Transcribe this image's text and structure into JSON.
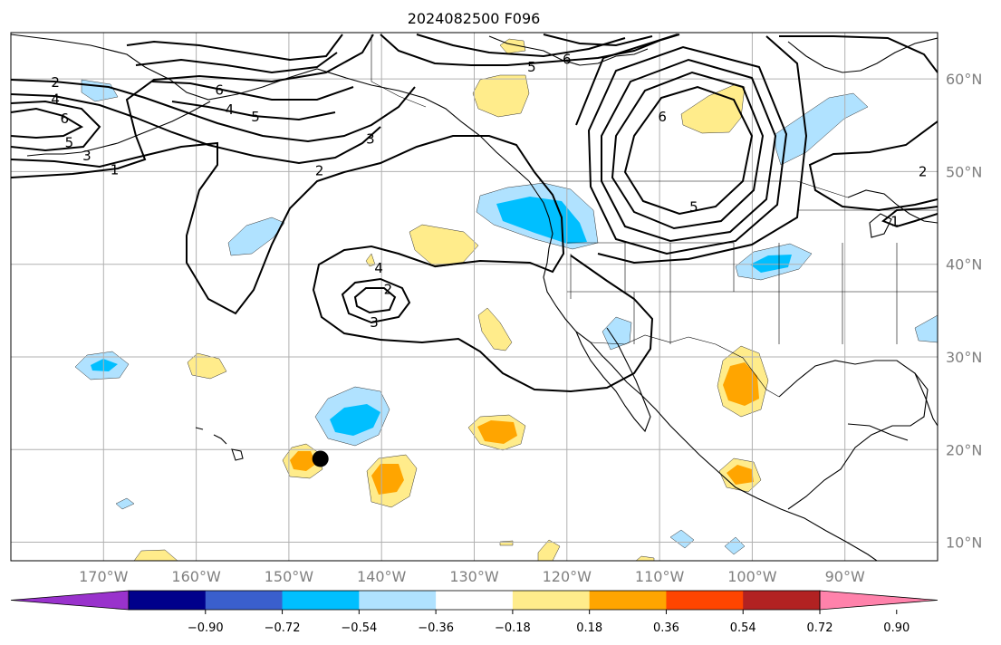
{
  "title": "2024082500 F096",
  "map": {
    "lon_range": [
      -180,
      -80
    ],
    "lat_range": [
      8,
      65
    ],
    "lon_ticks": [
      {
        "lon": -170,
        "label": "170°W"
      },
      {
        "lon": -160,
        "label": "160°W"
      },
      {
        "lon": -150,
        "label": "150°W"
      },
      {
        "lon": -140,
        "label": "140°W"
      },
      {
        "lon": -130,
        "label": "130°W"
      },
      {
        "lon": -120,
        "label": "120°W"
      },
      {
        "lon": -110,
        "label": "110°W"
      },
      {
        "lon": -100,
        "label": "100°W"
      },
      {
        "lon": -90,
        "label": "90°W"
      }
    ],
    "lat_ticks": [
      {
        "lat": 60,
        "label": "60°N"
      },
      {
        "lat": 50,
        "label": "50°N"
      },
      {
        "lat": 40,
        "label": "40°N"
      },
      {
        "lat": 30,
        "label": "30°N"
      },
      {
        "lat": 20,
        "label": "20°N"
      },
      {
        "lat": 10,
        "label": "10°N"
      }
    ],
    "marker": {
      "lon": -146.6,
      "lat": 19.0,
      "color": "#000000"
    },
    "contour_labels": [
      {
        "text": "2",
        "lon": -175.2,
        "lat": 59.6
      },
      {
        "text": "4",
        "lon": -175.2,
        "lat": 57.8
      },
      {
        "text": "6",
        "lon": -174.2,
        "lat": 55.7
      },
      {
        "text": "5",
        "lon": -173.7,
        "lat": 53.1
      },
      {
        "text": "3",
        "lon": -171.8,
        "lat": 51.7
      },
      {
        "text": "1",
        "lon": -168.8,
        "lat": 50.2
      },
      {
        "text": "6",
        "lon": -157.5,
        "lat": 58.8
      },
      {
        "text": "4",
        "lon": -156.4,
        "lat": 56.7
      },
      {
        "text": "5",
        "lon": -153.6,
        "lat": 55.9
      },
      {
        "text": "3",
        "lon": -141.2,
        "lat": 53.5
      },
      {
        "text": "2",
        "lon": -146.7,
        "lat": 50.1
      },
      {
        "text": "5",
        "lon": -123.8,
        "lat": 61.3
      },
      {
        "text": "6",
        "lon": -120.0,
        "lat": 62.1
      },
      {
        "text": "6",
        "lon": -109.7,
        "lat": 55.9
      },
      {
        "text": "5",
        "lon": -106.3,
        "lat": 46.2
      },
      {
        "text": "2",
        "lon": -81.6,
        "lat": 50.0
      },
      {
        "text": "1",
        "lon": -84.6,
        "lat": 44.6
      },
      {
        "text": "4",
        "lon": -140.3,
        "lat": 39.6
      },
      {
        "text": "2",
        "lon": -139.3,
        "lat": 37.3
      },
      {
        "text": "3",
        "lon": -140.8,
        "lat": 33.7
      }
    ],
    "colors": {
      "coast": "#000000",
      "grid": "#b0b0b0",
      "contour": "#000000"
    }
  },
  "colorbar": {
    "colors": [
      "#9932cc",
      "#00008b",
      "#3a5fcd",
      "#00bfff",
      "#b0e2ff",
      "#ffffff",
      "#ffec8b",
      "#ffa500",
      "#ff4500",
      "#b22222",
      "#ff82ab"
    ],
    "tick_labels": [
      "−0.90",
      "−0.72",
      "−0.54",
      "−0.36",
      "−0.18",
      "0.18",
      "0.36",
      "0.54",
      "0.72",
      "0.90"
    ],
    "extend": "both"
  }
}
